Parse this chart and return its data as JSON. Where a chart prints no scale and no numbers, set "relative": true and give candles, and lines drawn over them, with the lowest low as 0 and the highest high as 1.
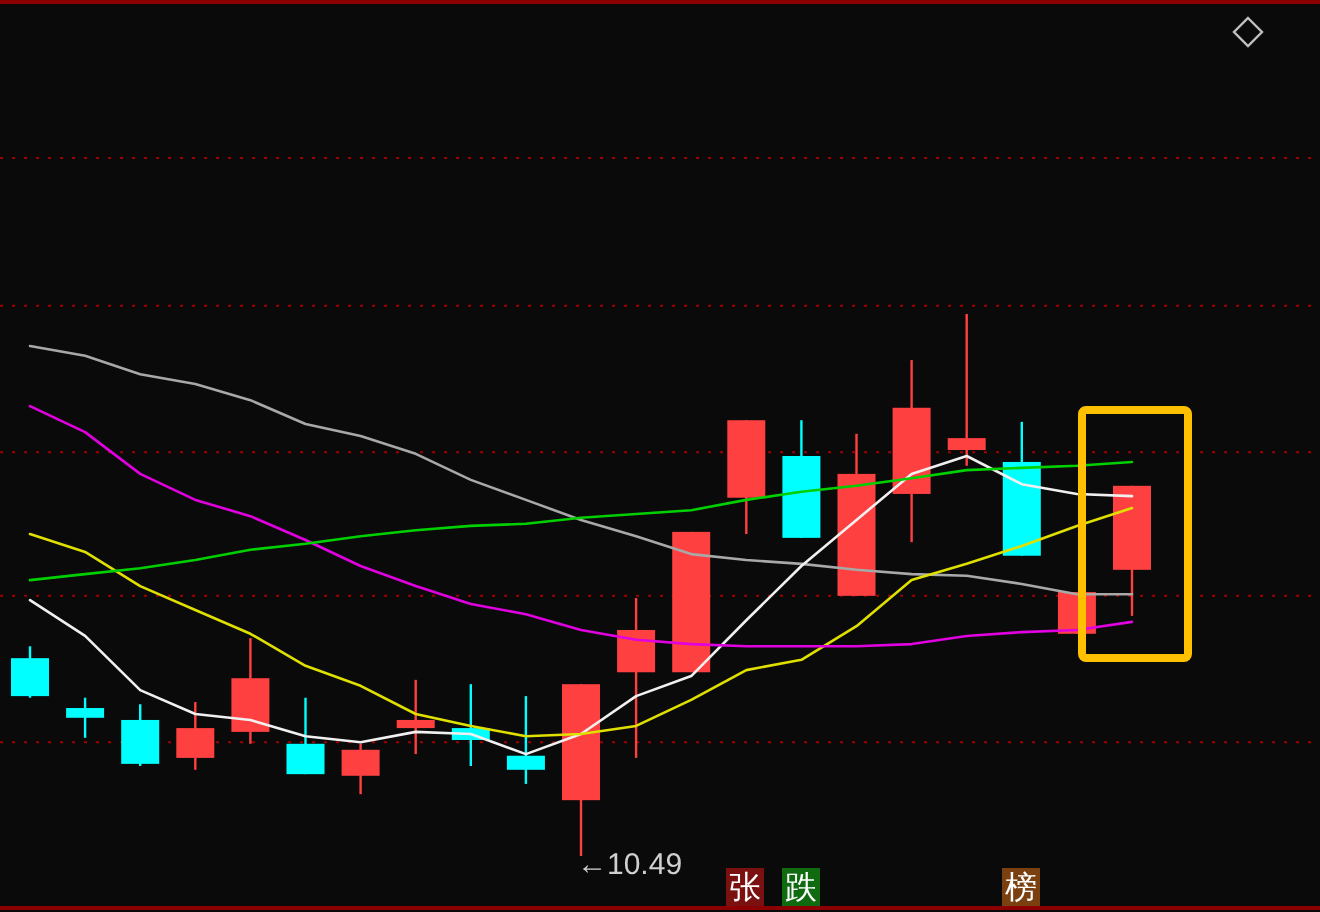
{
  "chart_data": {
    "type": "candlestick",
    "relative": true,
    "ref_lines": [
      {
        "axis": "y",
        "value": 0.21,
        "color": "#a00000",
        "line_style": "dotted"
      },
      {
        "axis": "y",
        "value": 0.48,
        "color": "#a00000",
        "line_style": "dotted"
      },
      {
        "axis": "y",
        "value": 0.745,
        "color": "#a00000",
        "line_style": "dotted"
      },
      {
        "axis": "y",
        "value": 1.015,
        "color": "#a00000",
        "line_style": "dotted"
      },
      {
        "axis": "y",
        "value": 1.288,
        "color": "#a00000",
        "line_style": "dotted"
      }
    ],
    "categories": [
      null,
      null,
      null,
      null,
      null,
      null,
      null,
      null,
      null,
      null,
      null,
      null,
      null,
      null,
      null,
      null,
      null,
      null,
      null,
      null,
      null
    ],
    "ohlc": [
      [
        0.365,
        0.387,
        0.292,
        0.295
      ],
      [
        0.273,
        0.292,
        0.218,
        0.255
      ],
      [
        0.251,
        0.28,
        0.166,
        0.17
      ],
      [
        0.181,
        0.284,
        0.159,
        0.236
      ],
      [
        0.229,
        0.402,
        0.207,
        0.328
      ],
      [
        0.207,
        0.292,
        0.151,
        0.151
      ],
      [
        0.148,
        0.207,
        0.114,
        0.196
      ],
      [
        0.236,
        0.325,
        0.188,
        0.251
      ],
      [
        0.236,
        0.317,
        0.166,
        0.214
      ],
      [
        0.185,
        0.295,
        0.133,
        0.159
      ],
      [
        0.103,
        0.317,
        0,
        0.317
      ],
      [
        0.339,
        0.476,
        0.181,
        0.417
      ],
      [
        0.339,
        0.598,
        0.339,
        0.598
      ],
      [
        0.661,
        0.804,
        0.594,
        0.804
      ],
      [
        0.738,
        0.804,
        0.587,
        0.587
      ],
      [
        0.48,
        0.779,
        0.48,
        0.705
      ],
      [
        0.668,
        0.915,
        0.579,
        0.827
      ],
      [
        0.749,
        1,
        0.72,
        0.771
      ],
      [
        0.727,
        0.801,
        0.554,
        0.554
      ],
      [
        0.41,
        0.487,
        0.41,
        0.487
      ],
      [
        0.528,
        0.683,
        0.443,
        0.683
      ]
    ],
    "colors": [
      "#00ffff",
      "#00ffff",
      "#00ffff",
      "#ff4040",
      "#ff4040",
      "#00ffff",
      "#ff4040",
      "#ff4040",
      "#00ffff",
      "#00ffff",
      "#ff4040",
      "#ff4040",
      "#ff4040",
      "#ff4040",
      "#00ffff",
      "#ff4040",
      "#ff4040",
      "#ff4040",
      "#00ffff",
      "#ff4040",
      "#ff4040"
    ],
    "series": [
      {
        "type": "line",
        "color": "#a8a8a8",
        "values": [
          0.941,
          0.923,
          0.889,
          0.871,
          0.841,
          0.797,
          0.775,
          0.742,
          0.694,
          0.657,
          0.62,
          0.59,
          0.557,
          0.546,
          0.539,
          0.528,
          0.52,
          0.517,
          0.502,
          0.483,
          0.483
        ]
      },
      {
        "type": "line",
        "color": "#f0f0f0",
        "values": [
          0.472,
          0.406,
          0.306,
          0.262,
          0.251,
          0.221,
          0.21,
          0.229,
          0.225,
          0.188,
          0.225,
          0.295,
          0.332,
          0.435,
          0.535,
          0.62,
          0.705,
          0.738,
          0.686,
          0.668,
          0.664
        ]
      },
      {
        "type": "line",
        "color": "#e0e000",
        "values": [
          0.594,
          0.561,
          0.498,
          0.454,
          0.41,
          0.351,
          0.314,
          0.262,
          0.24,
          0.221,
          0.225,
          0.24,
          0.288,
          0.343,
          0.362,
          0.424,
          0.509,
          0.539,
          0.572,
          0.609,
          0.642
        ]
      },
      {
        "type": "line",
        "color": "#e000e0",
        "values": [
          0.83,
          0.782,
          0.705,
          0.657,
          0.627,
          0.583,
          0.535,
          0.498,
          0.465,
          0.446,
          0.417,
          0.399,
          0.391,
          0.387,
          0.387,
          0.387,
          0.391,
          0.406,
          0.413,
          0.417,
          0.432
        ]
      },
      {
        "type": "line",
        "color": "#00d000",
        "values": [
          0.509,
          0.52,
          0.531,
          0.546,
          0.565,
          0.576,
          0.59,
          0.601,
          0.609,
          0.613,
          0.624,
          0.631,
          0.638,
          0.657,
          0.672,
          0.683,
          0.697,
          0.712,
          0.716,
          0.72,
          0.727
        ]
      }
    ],
    "annotations": [
      "←10.49",
      "张",
      "跌",
      "榜"
    ]
  }
}
